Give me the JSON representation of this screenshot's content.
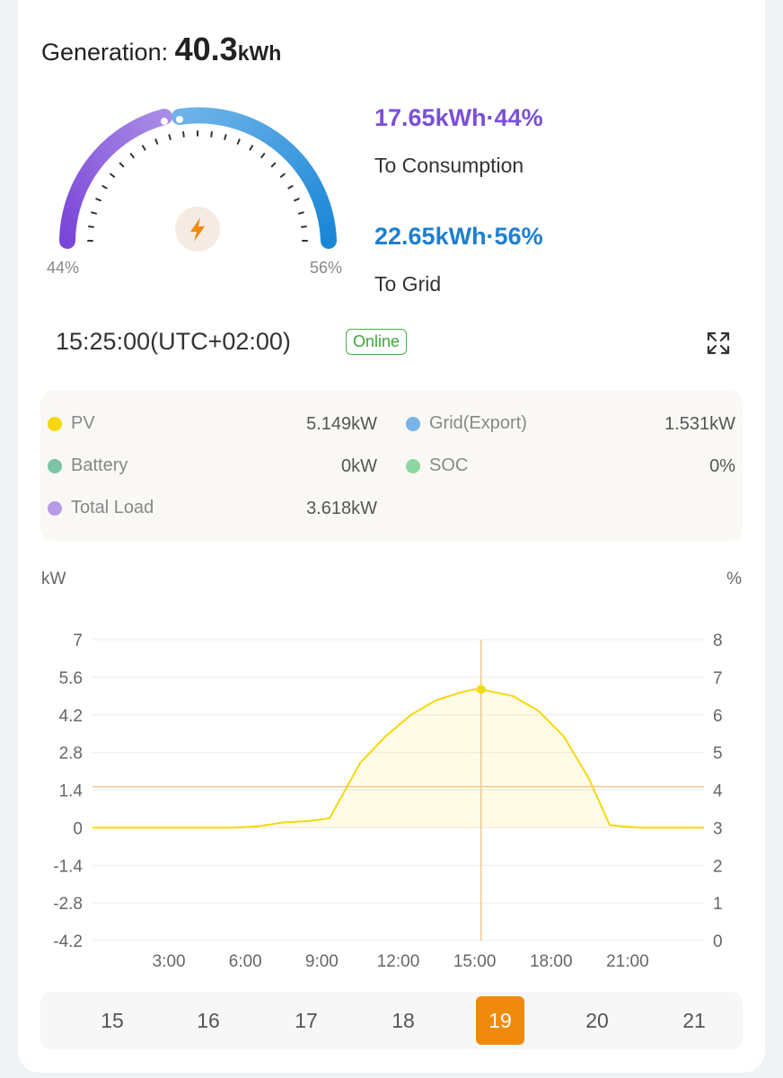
{
  "generation": {
    "label": "Generation:",
    "value": "40.3",
    "unit": "kWh"
  },
  "gauge": {
    "left_pct": "44%",
    "right_pct": "56%"
  },
  "consumption": {
    "value": "17.65kWh·44%",
    "label": "To Consumption",
    "color": "#7b4fd6"
  },
  "grid": {
    "value": "22.65kWh·56%",
    "label": "To Grid",
    "color": "#1e7fcf"
  },
  "status": {
    "time": "15:25:00(UTC+02:00)",
    "badge": "Online"
  },
  "stats": [
    {
      "label": "PV",
      "value": "5.149kW",
      "color": "#f5d90a"
    },
    {
      "label": "Grid(Export)",
      "value": "1.531kW",
      "color": "#7ab3e6"
    },
    {
      "label": "Battery",
      "value": "0kW",
      "color": "#7cc3a4"
    },
    {
      "label": "SOC",
      "value": "0%",
      "color": "#8dd6a0"
    },
    {
      "label": "Total Load",
      "value": "3.618kW",
      "color": "#b79ae6"
    }
  ],
  "chart_data": {
    "type": "area",
    "left_unit": "kW",
    "right_unit": "%",
    "yticks_left": [
      "7",
      "5.6",
      "4.2",
      "2.8",
      "1.4",
      "0",
      "-1.4",
      "-2.8",
      "-4.2"
    ],
    "yticks_right": [
      "8",
      "7",
      "6",
      "5",
      "4",
      "3",
      "2",
      "1",
      "0"
    ],
    "xticks": [
      "3:00",
      "6:00",
      "9:00",
      "12:00",
      "15:00",
      "18:00",
      "21:00"
    ],
    "ylim": [
      -4.2,
      7
    ],
    "xlim": [
      0,
      24
    ],
    "series": [
      {
        "name": "PV",
        "color": "#f5d90a",
        "x": [
          0,
          5.5,
          6.5,
          7.5,
          8.5,
          9.3,
          9.8,
          10.5,
          11.5,
          12.5,
          13.5,
          14.5,
          15.0,
          15.5,
          16.5,
          17.5,
          18.5,
          19.5,
          20.3,
          20.8,
          21.5,
          22.5,
          24
        ],
        "values": [
          0,
          0,
          0.05,
          0.2,
          0.25,
          0.35,
          1.2,
          2.4,
          3.4,
          4.2,
          4.75,
          5.05,
          5.15,
          5.1,
          4.9,
          4.35,
          3.4,
          1.8,
          0.1,
          0.05,
          0,
          0,
          0
        ]
      }
    ],
    "crosshair": {
      "x": 15.25,
      "y": 1.531,
      "point_value": 5.149
    }
  },
  "days": [
    "15",
    "16",
    "17",
    "18",
    "19",
    "20",
    "21"
  ],
  "active_day": "19",
  "icons": {
    "bolt": "bolt-icon",
    "expand": "expand-icon"
  }
}
